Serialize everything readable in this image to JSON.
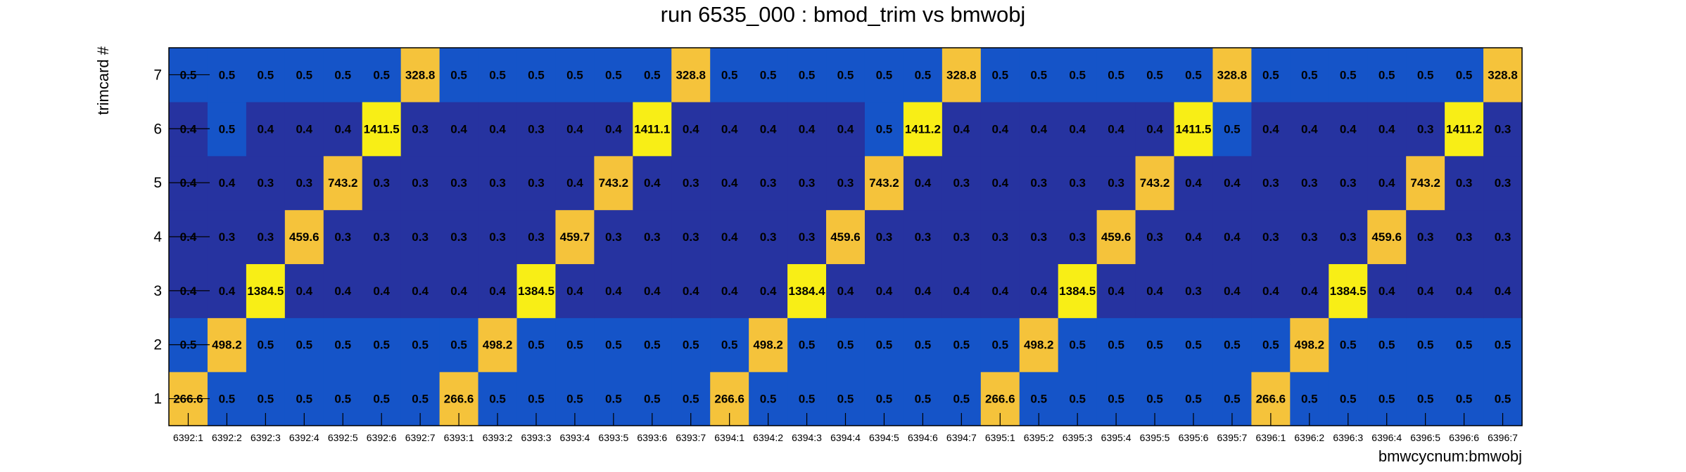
{
  "chart_data": {
    "type": "heatmap",
    "title": "run 6535_000 : bmod_trim vs bmwobj",
    "xlabel": "bmwcycnum:bmwobj",
    "ylabel": "trimcard #",
    "x_categories": [
      "6392:1",
      "6392:2",
      "6392:3",
      "6392:4",
      "6392:5",
      "6392:6",
      "6392:7",
      "6393:1",
      "6393:2",
      "6393:3",
      "6393:4",
      "6393:5",
      "6393:6",
      "6393:7",
      "6394:1",
      "6394:2",
      "6394:3",
      "6394:4",
      "6394:5",
      "6394:6",
      "6394:7",
      "6395:1",
      "6395:2",
      "6395:3",
      "6395:4",
      "6395:5",
      "6395:6",
      "6395:7",
      "6396:1",
      "6396:2",
      "6396:3",
      "6396:4",
      "6396:5",
      "6396:6",
      "6396:7"
    ],
    "y_categories": [
      "1",
      "2",
      "3",
      "4",
      "5",
      "6",
      "7"
    ],
    "rows": [
      [
        "266.6",
        "0.5",
        "0.5",
        "0.5",
        "0.5",
        "0.5",
        "0.5",
        "266.6",
        "0.5",
        "0.5",
        "0.5",
        "0.5",
        "0.5",
        "0.5",
        "266.6",
        "0.5",
        "0.5",
        "0.5",
        "0.5",
        "0.5",
        "0.5",
        "266.6",
        "0.5",
        "0.5",
        "0.5",
        "0.5",
        "0.5",
        "0.5",
        "266.6",
        "0.5",
        "0.5",
        "0.5",
        "0.5",
        "0.5",
        "0.5"
      ],
      [
        "0.5",
        "498.2",
        "0.5",
        "0.5",
        "0.5",
        "0.5",
        "0.5",
        "0.5",
        "498.2",
        "0.5",
        "0.5",
        "0.5",
        "0.5",
        "0.5",
        "0.5",
        "498.2",
        "0.5",
        "0.5",
        "0.5",
        "0.5",
        "0.5",
        "0.5",
        "498.2",
        "0.5",
        "0.5",
        "0.5",
        "0.5",
        "0.5",
        "0.5",
        "498.2",
        "0.5",
        "0.5",
        "0.5",
        "0.5",
        "0.5"
      ],
      [
        "0.4",
        "0.4",
        "1384.5",
        "0.4",
        "0.4",
        "0.4",
        "0.4",
        "0.4",
        "0.4",
        "1384.5",
        "0.4",
        "0.4",
        "0.4",
        "0.4",
        "0.4",
        "0.4",
        "1384.4",
        "0.4",
        "0.4",
        "0.4",
        "0.4",
        "0.4",
        "0.4",
        "1384.5",
        "0.4",
        "0.4",
        "0.3",
        "0.4",
        "0.4",
        "0.4",
        "1384.5",
        "0.4",
        "0.4",
        "0.4",
        "0.4"
      ],
      [
        "0.4",
        "0.3",
        "0.3",
        "459.6",
        "0.3",
        "0.3",
        "0.3",
        "0.3",
        "0.3",
        "0.3",
        "459.7",
        "0.3",
        "0.3",
        "0.3",
        "0.4",
        "0.3",
        "0.3",
        "459.6",
        "0.3",
        "0.3",
        "0.3",
        "0.3",
        "0.3",
        "0.3",
        "459.6",
        "0.3",
        "0.4",
        "0.4",
        "0.3",
        "0.3",
        "0.3",
        "459.6",
        "0.3",
        "0.3",
        "0.3"
      ],
      [
        "0.4",
        "0.4",
        "0.3",
        "0.3",
        "743.2",
        "0.3",
        "0.3",
        "0.3",
        "0.3",
        "0.3",
        "0.4",
        "743.2",
        "0.4",
        "0.3",
        "0.4",
        "0.3",
        "0.3",
        "0.3",
        "743.2",
        "0.4",
        "0.3",
        "0.4",
        "0.3",
        "0.3",
        "0.3",
        "743.2",
        "0.4",
        "0.4",
        "0.3",
        "0.3",
        "0.3",
        "0.4",
        "743.2",
        "0.3",
        "0.3"
      ],
      [
        "0.4",
        "0.5",
        "0.4",
        "0.4",
        "0.4",
        "1411.5",
        "0.3",
        "0.4",
        "0.4",
        "0.3",
        "0.4",
        "0.4",
        "1411.1",
        "0.4",
        "0.4",
        "0.4",
        "0.4",
        "0.4",
        "0.5",
        "1411.2",
        "0.4",
        "0.4",
        "0.4",
        "0.4",
        "0.4",
        "0.4",
        "1411.5",
        "0.5",
        "0.4",
        "0.4",
        "0.4",
        "0.4",
        "0.3",
        "1411.2",
        "0.3"
      ],
      [
        "0.5",
        "0.5",
        "0.5",
        "0.5",
        "0.5",
        "0.5",
        "328.8",
        "0.5",
        "0.5",
        "0.5",
        "0.5",
        "0.5",
        "0.5",
        "328.8",
        "0.5",
        "0.5",
        "0.5",
        "0.5",
        "0.5",
        "0.5",
        "328.8",
        "0.5",
        "0.5",
        "0.5",
        "0.5",
        "0.5",
        "0.5",
        "328.8",
        "0.5",
        "0.5",
        "0.5",
        "0.5",
        "0.5",
        "0.5",
        "328.8"
      ]
    ],
    "colors": {
      "low": "#2633a0",
      "mid": "#1554c8",
      "high_gold": "#f5c33b",
      "high_yellow": "#f8ee16"
    }
  }
}
